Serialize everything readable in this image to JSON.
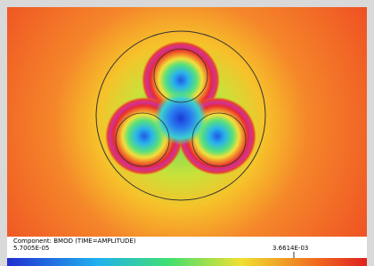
{
  "legend": {
    "component": "Component: BMOD (TIME=AMPLITUDE)",
    "min": "5.7005E-05",
    "max": "3.6614E-03"
  }
}
